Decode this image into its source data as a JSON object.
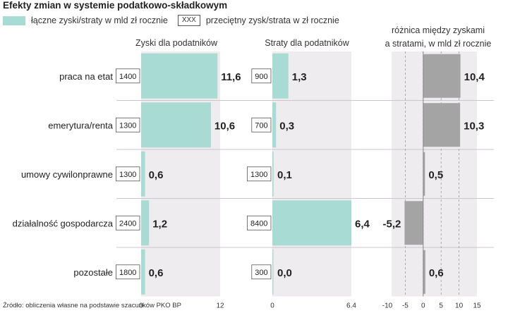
{
  "title": "Efekty zmian w systemie podatkowo-składkowym",
  "legend": {
    "bar_label": "łączne zyski/straty w mld zł rocznie",
    "box_sample": "XXX",
    "box_label": "przeciętny zysk/strata w zł rocznie"
  },
  "footer": "Źródło: obliczenia własne na podstawie szacunków PKO BP",
  "colors": {
    "teal": "#a8dbd3",
    "grey": "#a4a4a4",
    "panel_bg": "#efecf0",
    "divider": "#c9c6cc"
  },
  "chart_data": [
    {
      "type": "bar",
      "orientation": "horizontal",
      "title": "Zyski dla podatników",
      "categories": [
        "praca na etat",
        "emerytura/renta",
        "umowy cywilonprawne",
        "działalność gospodarcza",
        "pozostałe"
      ],
      "values": [
        11.6,
        10.6,
        0.6,
        1.2,
        0.6
      ],
      "value_labels": [
        "11,6",
        "10,6",
        "0,6",
        "1,2",
        "0,6"
      ],
      "avg_labels": [
        "1400",
        "1300",
        "1300",
        "2400",
        "1800"
      ],
      "xlim": [
        0,
        12
      ],
      "ticks": [
        0,
        12
      ],
      "tick_labels": [
        "0",
        "12"
      ],
      "color": "#a8dbd3"
    },
    {
      "type": "bar",
      "orientation": "horizontal",
      "title": "Straty dla podatników",
      "categories": [
        "praca na etat",
        "emerytura/renta",
        "umowy cywilonprawne",
        "działalność gospodarcza",
        "pozostałe"
      ],
      "values": [
        1.3,
        0.3,
        0.1,
        6.4,
        0.0
      ],
      "value_labels": [
        "1,3",
        "0,3",
        "0,1",
        "6,4",
        "0,0"
      ],
      "avg_labels": [
        "900",
        "700",
        "1300",
        "8400",
        "300"
      ],
      "xlim": [
        0,
        6.4
      ],
      "ticks": [
        0,
        6.4
      ],
      "tick_labels": [
        "0",
        "6.4"
      ],
      "color": "#a8dbd3"
    },
    {
      "type": "bar",
      "orientation": "horizontal",
      "title_lines": [
        "różnica między zyskami",
        "a stratami, w mld zł rocznie"
      ],
      "categories": [
        "praca na etat",
        "emerytura/renta",
        "umowy cywilonprawne",
        "działalność gospodarcza",
        "pozostałe"
      ],
      "values": [
        10.4,
        10.3,
        0.5,
        -5.2,
        0.6
      ],
      "value_labels": [
        "10,4",
        "10,3",
        "0,5",
        "-5,2",
        "0,6"
      ],
      "xlim": [
        -10,
        15
      ],
      "ticks": [
        -10,
        -5,
        0,
        5,
        10,
        15
      ],
      "tick_labels": [
        "-10",
        "-5",
        "0",
        "5",
        "10",
        "15"
      ],
      "grid": "dashed",
      "color": "#a4a4a4"
    }
  ]
}
